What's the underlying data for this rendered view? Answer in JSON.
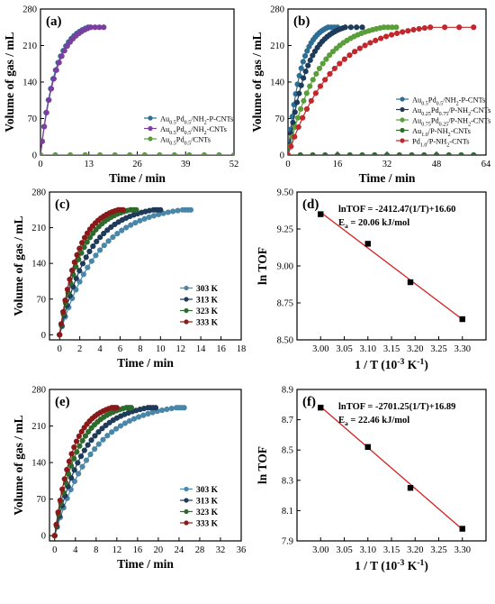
{
  "figure": {
    "panels": [
      "a",
      "b",
      "c",
      "d",
      "e",
      "f"
    ]
  },
  "chart_data": [
    {
      "id": "a",
      "type": "scatter",
      "panel_label": "(a)",
      "xlabel": "Time / min",
      "ylabel": "Volume of gas / mL",
      "xlim": [
        0,
        52
      ],
      "ylim": [
        0,
        280
      ],
      "xticks": [
        0,
        13,
        26,
        39,
        52
      ],
      "yticks": [
        0,
        70,
        140,
        210,
        280
      ],
      "legend_position": "bottom-right",
      "series": [
        {
          "name": "Au0.5Pd0.5/NH2-P-CNTs",
          "legend_label": [
            "Au",
            "0.5",
            "Pd",
            "0.5",
            "/NH",
            "2",
            "-P-CNTs"
          ],
          "color": "#2e6e95",
          "marker": "circle",
          "curve": "saturation",
          "t_end": 12.8,
          "v_max": 245,
          "points": 20
        },
        {
          "name": "Au0.5Pd0.5/NH2-CNTs",
          "legend_label": [
            "Au",
            "0.5",
            "Pd",
            "0.5",
            "/NH",
            "2",
            "-CNTs"
          ],
          "color": "#7b3f9e",
          "marker": "circle",
          "curve": "saturation",
          "t_end": 13.5,
          "v_max": 245,
          "points": 20,
          "extend_to": 17
        },
        {
          "name": "Au0.5Pd0.5/CNTs",
          "legend_label": [
            "Au",
            "0.5",
            "Pd",
            "0.5",
            "/CNTs"
          ],
          "color": "#5a9e3a",
          "marker": "circle",
          "curve": "flat",
          "x": [
            0,
            4,
            8,
            12,
            16,
            20,
            24,
            28,
            32,
            36,
            40,
            44,
            48,
            52
          ],
          "y": [
            0,
            0,
            0,
            0,
            0,
            0,
            0,
            0,
            0,
            0,
            0,
            0,
            0,
            0
          ]
        }
      ]
    },
    {
      "id": "b",
      "type": "scatter",
      "panel_label": "(b)",
      "xlabel": "Time / min",
      "ylabel": "Volume of gas / mL",
      "xlim": [
        0,
        64
      ],
      "ylim": [
        0,
        280
      ],
      "xticks": [
        0,
        16,
        32,
        48,
        64
      ],
      "yticks": [
        0,
        70,
        140,
        210,
        280
      ],
      "legend_position": "bottom-right",
      "series": [
        {
          "name": "Au0.5Pd0.5/NH2-P-CNTs",
          "legend_label": [
            "Au",
            "0.5",
            "Pd",
            "0.5",
            "/NH",
            "2",
            "-P-CNTs"
          ],
          "color": "#2e6e95",
          "marker": "circle",
          "curve": "saturation",
          "t_end": 13,
          "v_max": 245,
          "points": 22,
          "extend_to": 16
        },
        {
          "name": "Au0.25Pd0.75/P-NH2-CNTs",
          "legend_label": [
            "Au",
            "0.25",
            "Pd",
            "0.75",
            "/P-NH",
            "2",
            "-CNTs"
          ],
          "color": "#1f3b5a",
          "marker": "circle",
          "curve": "saturation",
          "t_end": 18.5,
          "v_max": 245,
          "points": 26,
          "extend_to": 24
        },
        {
          "name": "Au0.75Pd0.25/P-NH2-CNTs",
          "legend_label": [
            "Au",
            "0.75",
            "Pd",
            "0.25",
            "/P-NH",
            "2",
            "-CNTs"
          ],
          "color": "#5a9e3a",
          "marker": "circle",
          "curve": "saturation",
          "t_end": 31,
          "v_max": 245,
          "points": 30,
          "extend_to": 35
        },
        {
          "name": "Au1.0/P-NH2-CNTs",
          "legend_label": [
            "Au",
            "1.0",
            "/P-NH",
            "2",
            "-CNTs"
          ],
          "color": "#2d6b2d",
          "marker": "circle",
          "curve": "flat",
          "x": [
            0,
            4,
            8,
            12,
            16,
            20,
            24,
            28,
            32,
            36,
            40,
            44,
            48,
            52,
            56,
            60
          ],
          "y": [
            0,
            0,
            0,
            0,
            0,
            0,
            0,
            0,
            0,
            0,
            0,
            0,
            0,
            0,
            0,
            0
          ]
        },
        {
          "name": "Pd1.0/P-NH2-CNTs",
          "legend_label": [
            "Pd",
            "1.0",
            "/P-NH",
            "2",
            "-CNTs"
          ],
          "color": "#c0282d",
          "marker": "circle",
          "curve": "saturation",
          "t_end": 46,
          "v_max": 245,
          "points": 30,
          "extend_to": 60
        }
      ]
    },
    {
      "id": "c",
      "type": "scatter",
      "panel_label": "(c)",
      "xlabel": "Time / min",
      "ylabel": "Volume of gas / mL",
      "xlim": [
        -1,
        18
      ],
      "ylim": [
        -10,
        280
      ],
      "xticks": [
        0,
        2,
        4,
        6,
        8,
        10,
        12,
        14,
        16,
        18
      ],
      "yticks": [
        0,
        70,
        140,
        210,
        280
      ],
      "legend_position": "bottom-right",
      "series": [
        {
          "name": "303 K",
          "legend_label": [
            "303 K"
          ],
          "color": "#4a86a8",
          "marker": "circle",
          "curve": "saturation",
          "t_end": 12.2,
          "v_max": 245,
          "points": 30,
          "extend_to": 13
        },
        {
          "name": "313 K",
          "legend_label": [
            "313 K"
          ],
          "color": "#1f3b5a",
          "marker": "circle",
          "curve": "saturation",
          "t_end": 9.3,
          "v_max": 245,
          "points": 28,
          "extend_to": 10
        },
        {
          "name": "323 K",
          "legend_label": [
            "323 K"
          ],
          "color": "#2d6b2d",
          "marker": "circle",
          "curve": "saturation",
          "t_end": 7.0,
          "v_max": 245,
          "points": 26,
          "extend_to": 7.6
        },
        {
          "name": "333 K",
          "legend_label": [
            "333 K"
          ],
          "color": "#8a1a1a",
          "marker": "circle",
          "curve": "saturation",
          "t_end": 5.8,
          "v_max": 245,
          "points": 24,
          "extend_to": 6.3
        }
      ]
    },
    {
      "id": "d",
      "type": "scatter",
      "panel_label": "(d)",
      "xlabel": [
        "1 / T (10",
        "-3",
        " K",
        "-1",
        ")"
      ],
      "ylabel": "ln TOF",
      "xlim": [
        2.95,
        3.35
      ],
      "ylim": [
        8.5,
        9.5
      ],
      "xticks": [
        3.0,
        3.05,
        3.1,
        3.15,
        3.2,
        3.25,
        3.3
      ],
      "xtick_labels": [
        "3.00",
        "3.05",
        "3.10",
        "3.15",
        "3.20",
        "3.25",
        "3.30"
      ],
      "yticks": [
        8.5,
        8.75,
        9.0,
        9.25,
        9.5
      ],
      "ytick_labels": [
        "8.50",
        "8.75",
        "9.00",
        "9.25",
        "9.50"
      ],
      "equation": "lnTOF = -2412.47(1/T)+16.60",
      "ea_text": [
        "E",
        "a",
        " = 20.06 kJ/mol"
      ],
      "fit": {
        "slope": -2.41247,
        "intercept": 16.6,
        "color": "#d62020"
      },
      "x": [
        3.0,
        3.1,
        3.19,
        3.3
      ],
      "y": [
        9.35,
        9.15,
        8.89,
        8.64
      ]
    },
    {
      "id": "e",
      "type": "scatter",
      "panel_label": "(e)",
      "xlabel": "Time / min",
      "ylabel": "Volume of gas / mL",
      "xlim": [
        -1,
        36
      ],
      "ylim": [
        -10,
        280
      ],
      "xticks": [
        0,
        4,
        8,
        12,
        16,
        20,
        24,
        28,
        32,
        36
      ],
      "yticks": [
        0,
        70,
        140,
        210,
        280
      ],
      "legend_position": "bottom-right",
      "series": [
        {
          "name": "303 K",
          "legend_label": [
            "303 K"
          ],
          "color": "#4a86a8",
          "marker": "circle",
          "curve": "saturation",
          "t_end": 23.5,
          "v_max": 245,
          "points": 30,
          "extend_to": 25
        },
        {
          "name": "313 K",
          "legend_label": [
            "313 K"
          ],
          "color": "#1f3b5a",
          "marker": "circle",
          "curve": "saturation",
          "t_end": 18,
          "v_max": 245,
          "points": 28,
          "extend_to": 19.5
        },
        {
          "name": "323 K",
          "legend_label": [
            "323 K"
          ],
          "color": "#2d6b2d",
          "marker": "circle",
          "curve": "saturation",
          "t_end": 13.8,
          "v_max": 245,
          "points": 26,
          "extend_to": 14.8
        },
        {
          "name": "333 K",
          "legend_label": [
            "333 K"
          ],
          "color": "#8a1a1a",
          "marker": "circle",
          "curve": "saturation",
          "t_end": 11,
          "v_max": 245,
          "points": 24,
          "extend_to": 12
        }
      ]
    },
    {
      "id": "f",
      "type": "scatter",
      "panel_label": "(f)",
      "xlabel": [
        "1 / T (10",
        "-3",
        " K",
        "-1",
        ")"
      ],
      "ylabel": "ln TOF",
      "xlim": [
        2.95,
        3.35
      ],
      "ylim": [
        7.9,
        8.9
      ],
      "xticks": [
        3.0,
        3.05,
        3.1,
        3.15,
        3.2,
        3.25,
        3.3
      ],
      "xtick_labels": [
        "3.00",
        "3.05",
        "3.10",
        "3.15",
        "3.20",
        "3.25",
        "3.30"
      ],
      "yticks": [
        7.9,
        8.1,
        8.3,
        8.5,
        8.7,
        8.9
      ],
      "ytick_labels": [
        "7.9",
        "8.1",
        "8.3",
        "8.5",
        "8.7",
        "8.9"
      ],
      "equation": "lnTOF = -2701.25(1/T)+16.89",
      "ea_text": [
        "E",
        "a",
        " = 22.46 kJ/mol"
      ],
      "fit": {
        "slope": -2.70125,
        "intercept": 16.89,
        "color": "#d62020"
      },
      "x": [
        3.0,
        3.1,
        3.19,
        3.3
      ],
      "y": [
        8.78,
        8.52,
        8.25,
        7.98
      ]
    }
  ]
}
